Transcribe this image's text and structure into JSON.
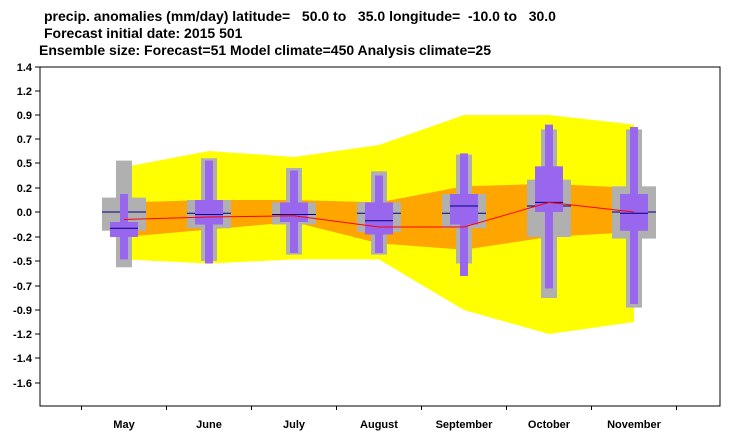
{
  "titles": [
    "precip. anomalies (mm/day) latitude=   50.0 to   35.0 longitude=  -10.0 to   30.0",
    "Forecast initial date: 2015 501",
    "Ensemble size: Forecast=51 Model climate=450 Analysis climate=25"
  ],
  "colors": {
    "yellow_band": "#ffff00",
    "orange_band": "#ffa500",
    "gray_box": "#b0b0b0",
    "purple_box": "#9966ee",
    "median_line": "#000080",
    "red_line": "#ff0000"
  },
  "chart_data": {
    "type": "box",
    "title": "precip. anomalies (mm/day)",
    "ylim": [
      -1.8,
      1.4
    ],
    "y_ticks": [
      {
        "v": 1.4,
        "label": "1.4"
      },
      {
        "v": 1.2,
        "label": "1.2"
      },
      {
        "v": 0.9,
        "label": "0.9"
      },
      {
        "v": 0.7,
        "label": "0.7"
      },
      {
        "v": 0.5,
        "label": "0.5"
      },
      {
        "v": 0.2,
        "label": "0.2"
      },
      {
        "v": 0.0,
        "label": "0.0"
      },
      {
        "v": -0.2,
        "label": "-0.2"
      },
      {
        "v": -0.5,
        "label": "-0.5"
      },
      {
        "v": -0.7,
        "label": "-0.7"
      },
      {
        "v": -0.9,
        "label": "-0.9"
      },
      {
        "v": -1.2,
        "label": "-1.2"
      },
      {
        "v": -1.4,
        "label": "-1.4"
      },
      {
        "v": -1.6,
        "label": "-1.6"
      }
    ],
    "categories": [
      "May",
      "June",
      "July",
      "August",
      "September",
      "October",
      "November"
    ],
    "yellow_band": {
      "upper": [
        0.45,
        0.6,
        0.55,
        0.65,
        0.9,
        0.9,
        0.82
      ],
      "lower": [
        -0.48,
        -0.52,
        -0.48,
        -0.48,
        -0.9,
        -1.2,
        -1.05
      ]
    },
    "orange_band": {
      "upper": [
        0.08,
        0.1,
        0.1,
        0.08,
        0.22,
        0.25,
        0.2
      ],
      "lower": [
        -0.2,
        -0.14,
        -0.08,
        -0.28,
        -0.36,
        -0.2,
        -0.16
      ]
    },
    "red_line": [
      -0.06,
      -0.04,
      -0.03,
      -0.12,
      -0.12,
      0.08,
      0.0
    ],
    "gray_boxes": [
      {
        "whisker_low": -0.55,
        "q_low": -0.15,
        "median": 0.0,
        "q_high": 0.12,
        "whisker_high": 0.52
      },
      {
        "whisker_low": -0.5,
        "q_low": -0.13,
        "median": -0.01,
        "q_high": 0.1,
        "whisker_high": 0.54
      },
      {
        "whisker_low": -0.42,
        "q_low": -0.1,
        "median": -0.02,
        "q_high": 0.08,
        "whisker_high": 0.44
      },
      {
        "whisker_low": -0.42,
        "q_low": -0.16,
        "median": -0.01,
        "q_high": 0.08,
        "whisker_high": 0.4
      },
      {
        "whisker_low": -0.52,
        "q_low": -0.13,
        "median": -0.01,
        "q_high": 0.15,
        "whisker_high": 0.57
      },
      {
        "whisker_low": -0.8,
        "q_low": -0.2,
        "median": 0.05,
        "q_high": 0.3,
        "whisker_high": 0.78
      },
      {
        "whisker_low": -0.88,
        "q_low": -0.22,
        "median": 0.0,
        "q_high": 0.22,
        "whisker_high": 0.78
      }
    ],
    "purple_boxes": [
      {
        "whisker_low": -0.48,
        "q_low": -0.2,
        "median": -0.13,
        "q_high": -0.08,
        "whisker_high": 0.15
      },
      {
        "whisker_low": -0.52,
        "q_low": -0.1,
        "median": -0.02,
        "q_high": 0.1,
        "whisker_high": 0.52
      },
      {
        "whisker_low": -0.4,
        "q_low": -0.08,
        "median": -0.02,
        "q_high": 0.08,
        "whisker_high": 0.41
      },
      {
        "whisker_low": -0.4,
        "q_low": -0.18,
        "median": -0.07,
        "q_high": 0.08,
        "whisker_high": 0.35
      },
      {
        "whisker_low": -0.62,
        "q_low": -0.1,
        "median": 0.05,
        "q_high": 0.15,
        "whisker_high": 0.58
      },
      {
        "whisker_low": -0.72,
        "q_low": 0.0,
        "median": 0.08,
        "q_high": 0.46,
        "whisker_high": 0.82
      },
      {
        "whisker_low": -0.85,
        "q_low": -0.15,
        "median": -0.01,
        "q_high": 0.15,
        "whisker_high": 0.8
      }
    ]
  }
}
